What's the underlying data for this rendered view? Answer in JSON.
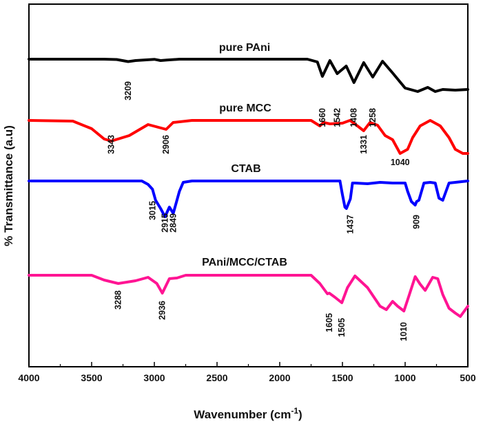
{
  "chart_data": {
    "type": "line",
    "title": "",
    "xlabel": "Wavenumber (cm",
    "xlabel_superscript": "-1",
    "xlabel_suffix": ")",
    "ylabel": "% Transmittance (a.u)",
    "xlim": [
      4000,
      500
    ],
    "x_reversed": true,
    "y_tick_labels_shown": false,
    "grid": false,
    "legend": "none",
    "x_ticks": [
      4000,
      3500,
      3000,
      2500,
      2000,
      1500,
      1000,
      500
    ],
    "series": [
      {
        "name": "pure PAni",
        "color": "#000000",
        "x": [
          4000,
          3400,
          3300,
          3209,
          3150,
          3000,
          2950,
          2900,
          2800,
          1780,
          1700,
          1660,
          1600,
          1542,
          1470,
          1408,
          1330,
          1258,
          1180,
          1100,
          1000,
          900,
          820,
          760,
          700,
          600,
          500
        ],
        "y": [
          0,
          0,
          -0.5,
          -3.5,
          -2,
          -0.2,
          -2,
          -1.3,
          0,
          0,
          -4,
          -25,
          -2,
          -21,
          -10,
          -34,
          -5,
          -26,
          -3,
          -20,
          -42,
          -47,
          -41,
          -47,
          -44,
          -45,
          -44
        ],
        "peak_labels": [
          "3209",
          "1660",
          "1542",
          "1408",
          "1258"
        ],
        "peak_label_x": [
          3209,
          1660,
          1542,
          1408,
          1258
        ]
      },
      {
        "name": "pure MCC",
        "color": "#ff0000",
        "x": [
          4000,
          3650,
          3500,
          3400,
          3343,
          3200,
          3050,
          2906,
          2850,
          2700,
          1750,
          1680,
          1650,
          1600,
          1500,
          1440,
          1380,
          1331,
          1280,
          1220,
          1160,
          1100,
          1040,
          980,
          940,
          880,
          800,
          720,
          650,
          600,
          540,
          500
        ],
        "y": [
          0,
          -1,
          -12,
          -27,
          -30,
          -22,
          -6,
          -13,
          -3,
          0,
          0,
          -8,
          -3,
          -5,
          -4,
          0,
          -8,
          -15,
          -3,
          -7,
          -22,
          -28,
          -48,
          -42,
          -25,
          -8,
          0,
          -8,
          -25,
          -42,
          -48,
          -48
        ],
        "peak_labels": [
          "3343",
          "2906",
          "1331",
          "1040"
        ],
        "peak_label_x": [
          3343,
          2906,
          1331,
          1040
        ]
      },
      {
        "name": "CTAB",
        "color": "#0000ff",
        "x": [
          4000,
          3100,
          3050,
          3015,
          2990,
          2950,
          2915,
          2880,
          2849,
          2800,
          2770,
          2700,
          1520,
          1500,
          1480,
          1468,
          1437,
          1420,
          1400,
          1300,
          1200,
          1100,
          1000,
          980,
          950,
          920,
          909,
          890,
          850,
          800,
          760,
          730,
          700,
          650,
          600,
          500
        ],
        "y": [
          0,
          0,
          -5,
          -12,
          -28,
          -40,
          -52,
          -38,
          -47,
          -15,
          -2,
          0,
          0,
          -20,
          -38,
          -40,
          -26,
          -3,
          -3,
          -4,
          -2,
          -3,
          -3,
          -15,
          -30,
          -35,
          -30,
          -28,
          -3,
          -2,
          -3,
          -25,
          -28,
          -3,
          -2,
          0
        ],
        "peak_labels": [
          "3015",
          "2915",
          "2849",
          "1437",
          "909"
        ],
        "peak_label_x": [
          3015,
          2915,
          2849,
          1437,
          909
        ]
      },
      {
        "name": "PAni/MCC/CTAB",
        "color": "#ff1493",
        "x": [
          4000,
          3500,
          3400,
          3288,
          3150,
          3050,
          2980,
          2936,
          2880,
          2820,
          2750,
          1750,
          1680,
          1620,
          1605,
          1560,
          1505,
          1460,
          1400,
          1300,
          1200,
          1150,
          1100,
          1060,
          1010,
          970,
          920,
          880,
          840,
          780,
          740,
          700,
          650,
          600,
          560,
          500
        ],
        "y": [
          0,
          0,
          -7,
          -12,
          -8,
          -3,
          -12,
          -26,
          -5,
          -4,
          0,
          0,
          -12,
          -27,
          -26,
          -32,
          -40,
          -18,
          -1,
          -18,
          -45,
          -50,
          -38,
          -45,
          -52,
          -30,
          -2,
          -13,
          -22,
          -3,
          -5,
          -28,
          -48,
          -55,
          -60,
          -45
        ],
        "peak_labels": [
          "3288",
          "2936",
          "1605",
          "1505",
          "1010"
        ],
        "peak_label_x": [
          3288,
          2936,
          1605,
          1505,
          1010
        ]
      }
    ]
  }
}
